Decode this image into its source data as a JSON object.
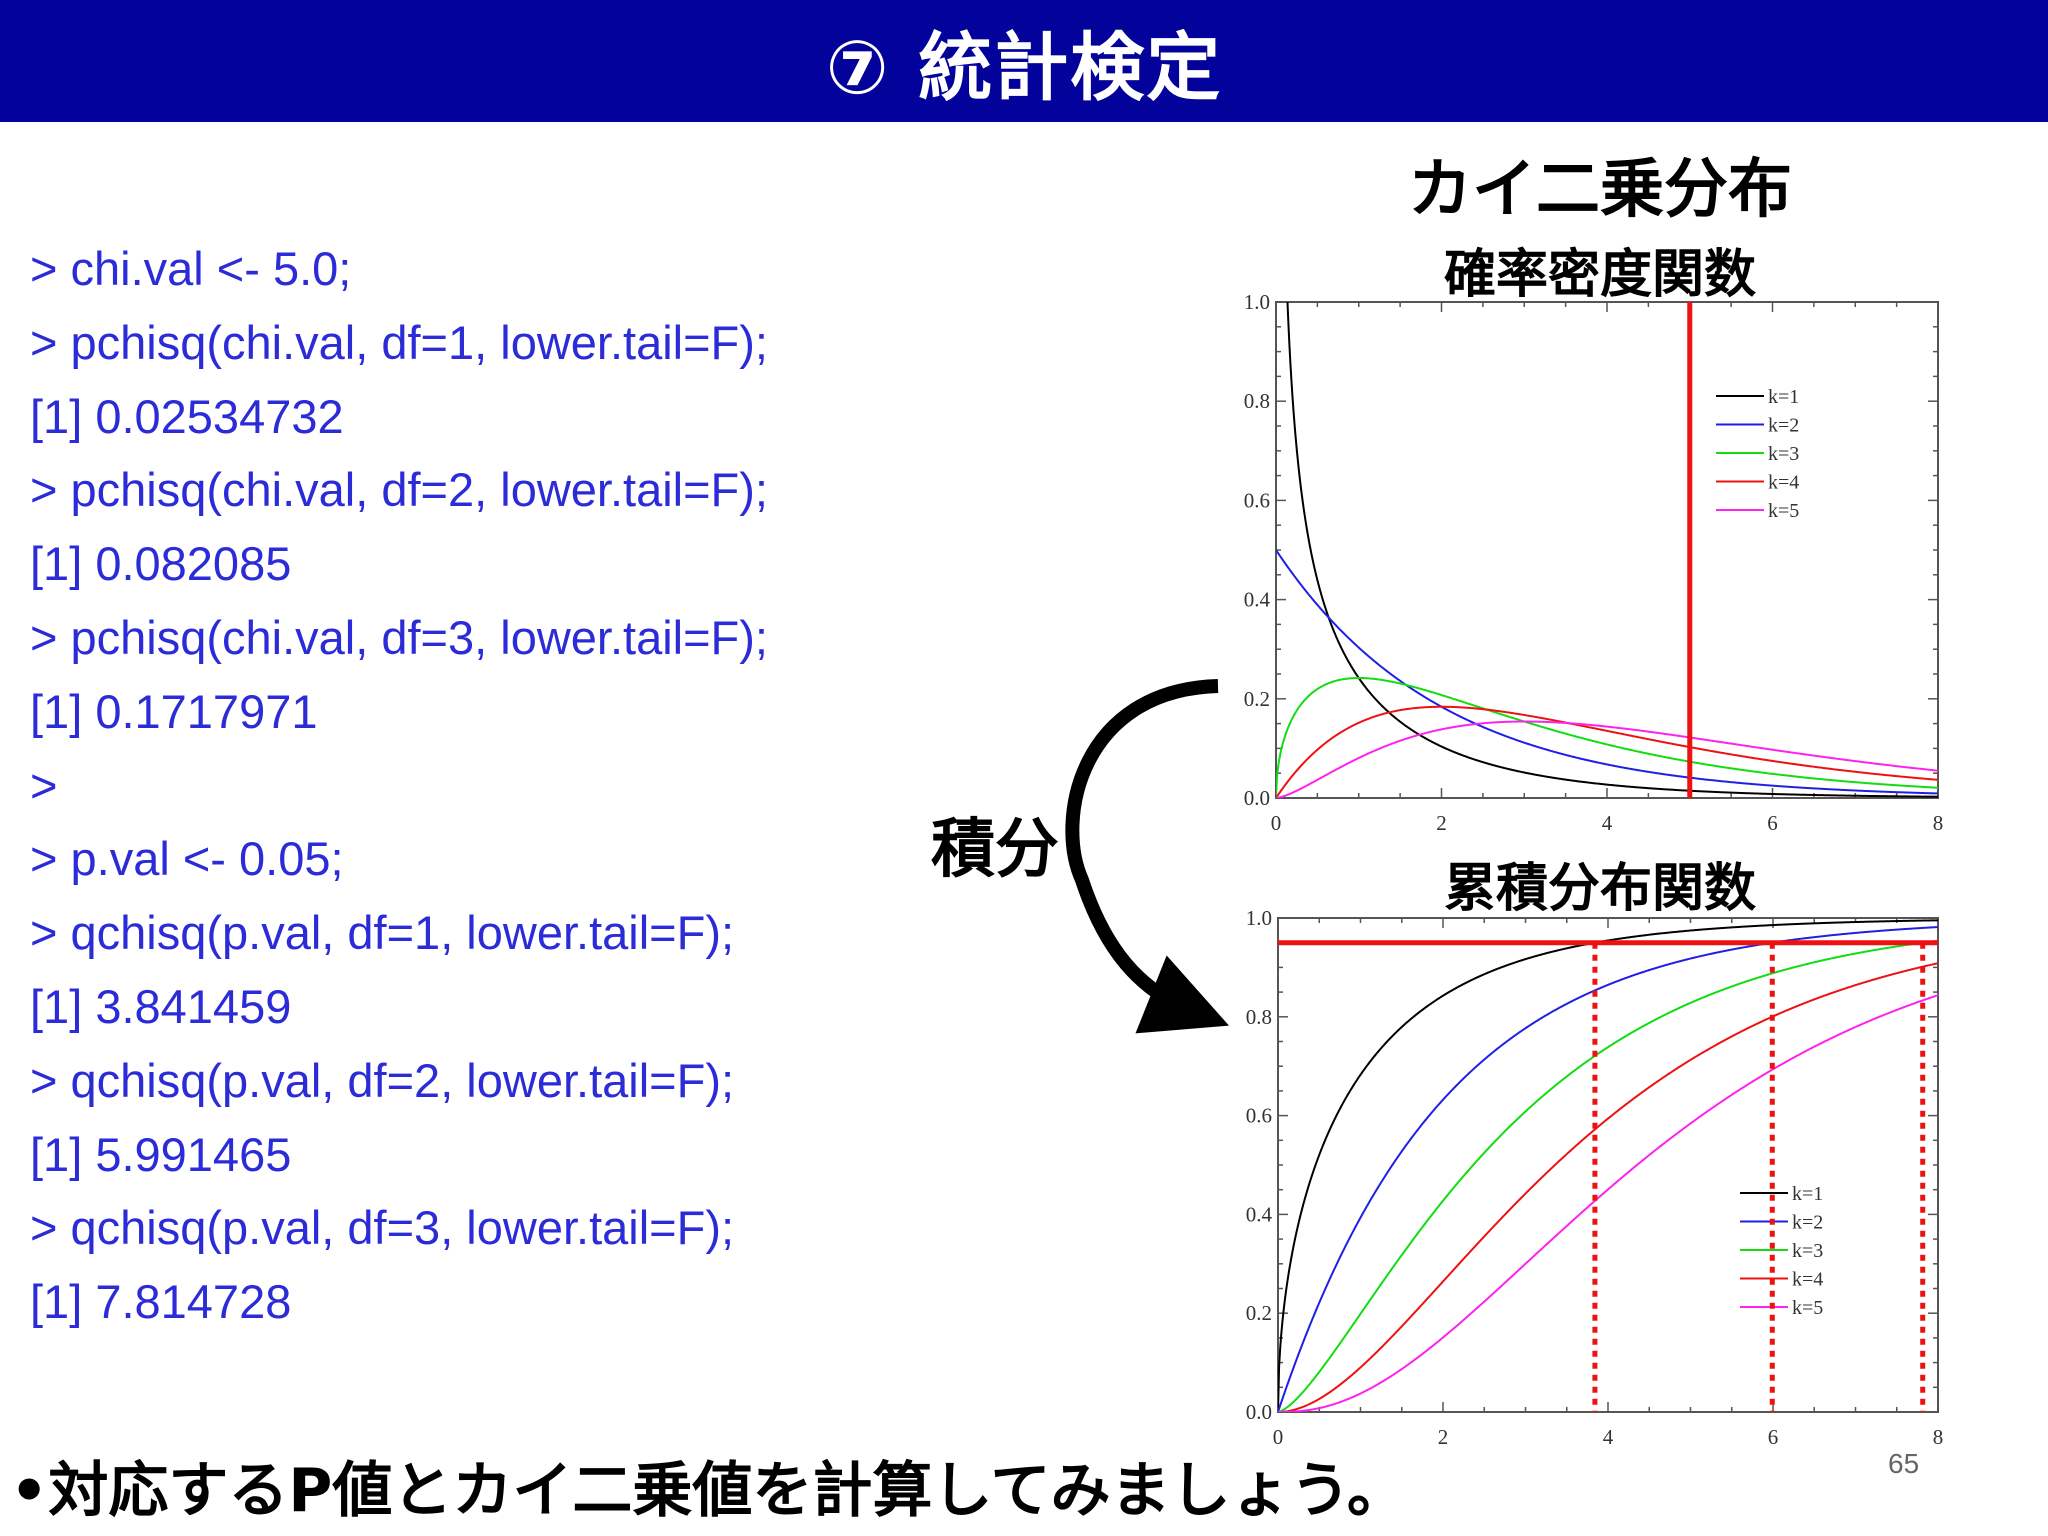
{
  "header": {
    "title": "⑦ 統計検定"
  },
  "code_lines": [
    "> chi.val <- 5.0;",
    "> pchisq(chi.val, df=1, lower.tail=F);",
    "[1] 0.02534732",
    "> pchisq(chi.val, df=2, lower.tail=F);",
    "[1] 0.082085",
    "> pchisq(chi.val, df=3, lower.tail=F);",
    "[1] 0.1717971",
    ">",
    "> p.val <- 0.05;",
    "> qchisq(p.val, df=1, lower.tail=F);",
    "[1] 3.841459",
    "> qchisq(p.val, df=2, lower.tail=F);",
    "[1] 5.991465",
    "> qchisq(p.val, df=3, lower.tail=F);",
    "[1] 7.814728"
  ],
  "labels": {
    "chart_title": "カイ二乗分布",
    "pdf_subtitle": "確率密度関数",
    "cdf_subtitle": "累積分布関数",
    "integral": "積分",
    "bottom_note": "•対応するP値とカイ二乗値を計算してみましょう。",
    "page_number": "65"
  },
  "colors": {
    "header_bg": "#03039b",
    "code_text": "#2b2bd8",
    "marker": "#ee1111",
    "series": [
      "#000000",
      "#1f1fe6",
      "#11dd11",
      "#ee1111",
      "#ff22ee"
    ]
  },
  "chart_data": [
    {
      "type": "line",
      "title": "確率密度関数",
      "function": "chi-square probability density",
      "series": [
        {
          "name": "k=1",
          "k": 1
        },
        {
          "name": "k=2",
          "k": 2
        },
        {
          "name": "k=3",
          "k": 3
        },
        {
          "name": "k=4",
          "k": 4
        },
        {
          "name": "k=5",
          "k": 5
        }
      ],
      "xlim": [
        0,
        8
      ],
      "ylim": [
        0,
        1.0
      ],
      "xticks": [
        "0",
        "2",
        "4",
        "6",
        "8"
      ],
      "yticks": [
        "0.0",
        "0.2",
        "0.4",
        "0.6",
        "0.8",
        "1.0"
      ],
      "legend_position": "top-right",
      "vertical_line_x": 5.0
    },
    {
      "type": "line",
      "title": "累積分布関数",
      "function": "chi-square cumulative distribution",
      "series": [
        {
          "name": "k=1",
          "k": 1
        },
        {
          "name": "k=2",
          "k": 2
        },
        {
          "name": "k=3",
          "k": 3
        },
        {
          "name": "k=4",
          "k": 4
        },
        {
          "name": "k=5",
          "k": 5
        }
      ],
      "xlim": [
        0,
        8
      ],
      "ylim": [
        0,
        1.0
      ],
      "xticks": [
        "0",
        "2",
        "4",
        "6",
        "8"
      ],
      "yticks": [
        "0.0",
        "0.2",
        "0.4",
        "0.6",
        "0.8",
        "1.0"
      ],
      "legend_position": "bottom-right",
      "horizontal_line_y": 0.95,
      "dotted_x": [
        3.841459,
        5.991465,
        7.814728
      ]
    }
  ]
}
